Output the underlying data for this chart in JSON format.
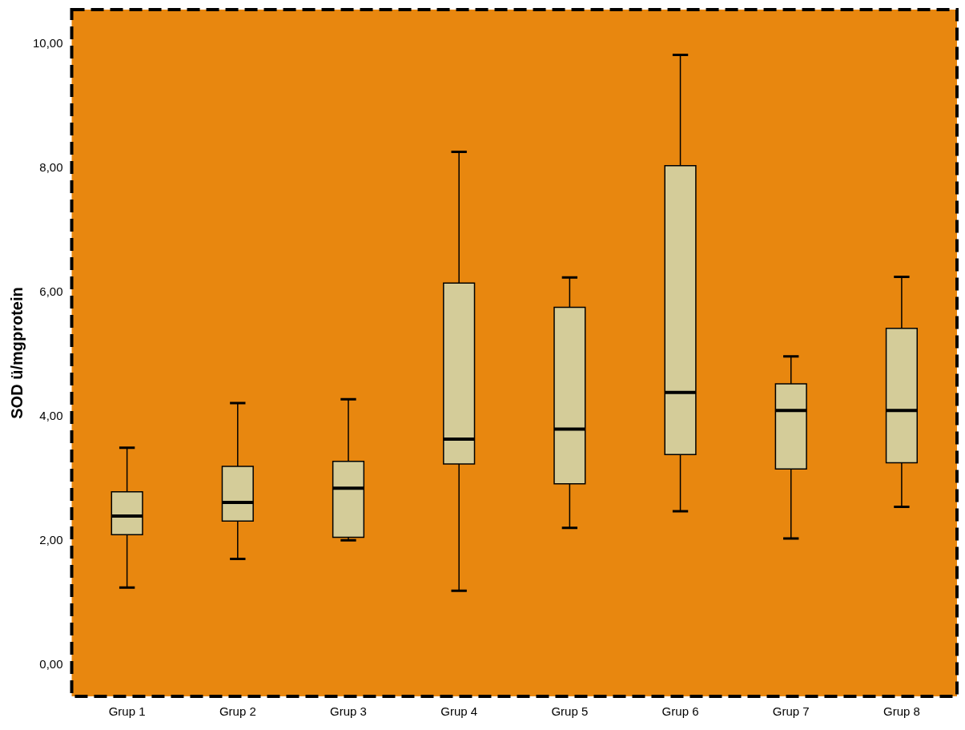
{
  "chart_data": {
    "type": "box",
    "ylabel": "SOD ü/mgprotein",
    "categories": [
      "Grup 1",
      "Grup 2",
      "Grup 3",
      "Grup 4",
      "Grup 5",
      "Grup 6",
      "Grup 7",
      "Grup 8"
    ],
    "color": "#d4cc99",
    "boxes": [
      {
        "low": 1.25,
        "q1": 2.1,
        "median": 2.4,
        "q3": 2.79,
        "high": 3.5
      },
      {
        "low": 1.71,
        "q1": 2.32,
        "median": 2.62,
        "q3": 3.2,
        "high": 4.22
      },
      {
        "low": 2.01,
        "q1": 2.06,
        "median": 2.85,
        "q3": 3.28,
        "high": 4.28
      },
      {
        "low": 1.2,
        "q1": 3.24,
        "median": 3.64,
        "q3": 6.15,
        "high": 8.26
      },
      {
        "low": 2.21,
        "q1": 2.92,
        "median": 3.8,
        "q3": 5.76,
        "high": 6.24
      },
      {
        "low": 2.48,
        "q1": 3.39,
        "median": 4.39,
        "q3": 8.04,
        "high": 9.82
      },
      {
        "low": 2.04,
        "q1": 3.16,
        "median": 4.1,
        "q3": 4.53,
        "high": 4.97
      },
      {
        "low": 2.55,
        "q1": 3.26,
        "median": 4.1,
        "q3": 5.42,
        "high": 6.25
      }
    ],
    "ylim": [
      -0.5,
      10.55
    ],
    "yticks": [
      {
        "value": 0,
        "label": "0,00"
      },
      {
        "value": 2,
        "label": "2,00"
      },
      {
        "value": 4,
        "label": "4,00"
      },
      {
        "value": 6,
        "label": "6,00"
      },
      {
        "value": 8,
        "label": "8,00"
      },
      {
        "value": 10,
        "label": "10,00"
      }
    ]
  }
}
